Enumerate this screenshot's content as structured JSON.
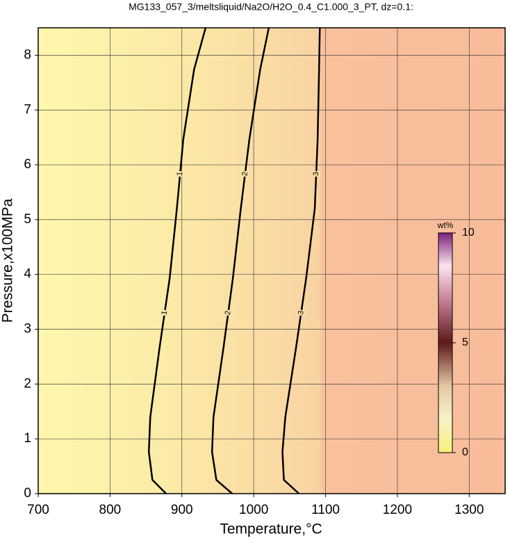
{
  "chart_data": {
    "type": "contour",
    "title": "MG133_057_3/meltsliquid/Na2O/H2O_0.4_C1.000_3_PT, dz=0.1:",
    "x_label": "Temperature,°C",
    "y_label": "Pressure,x100MPa",
    "xlim": [
      700,
      1350
    ],
    "ylim": [
      0,
      8.5
    ],
    "xticks": [
      700,
      800,
      900,
      1000,
      1100,
      1200,
      1300
    ],
    "yticks": [
      0,
      1,
      2,
      3,
      4,
      5,
      6,
      7,
      8
    ],
    "grid": true,
    "line_color": "#000000",
    "contours": [
      {
        "level": 1,
        "x": [
          878,
          859,
          854,
          856,
          869,
          883,
          893,
          902,
          917,
          933
        ],
        "y": [
          0,
          0.25,
          0.76,
          1.4,
          2.67,
          3.93,
          5.2,
          6.47,
          7.74,
          8.5
        ]
      },
      {
        "level": 2,
        "x": [
          970,
          948,
          942,
          944,
          958,
          971,
          982,
          994,
          1009,
          1021
        ],
        "y": [
          0,
          0.25,
          0.76,
          1.4,
          2.67,
          3.93,
          5.2,
          6.47,
          7.74,
          8.5
        ]
      },
      {
        "level": 3,
        "x": [
          1063,
          1042,
          1040,
          1044,
          1059,
          1073,
          1085,
          1089,
          1091,
          1092
        ],
        "y": [
          0,
          0.25,
          0.76,
          1.4,
          2.67,
          3.93,
          5.2,
          6.47,
          7.74,
          8.5
        ]
      }
    ],
    "colorbar": {
      "label": "wt%",
      "lim": [
        0,
        10
      ],
      "ticks": [
        0,
        5,
        10
      ]
    }
  }
}
